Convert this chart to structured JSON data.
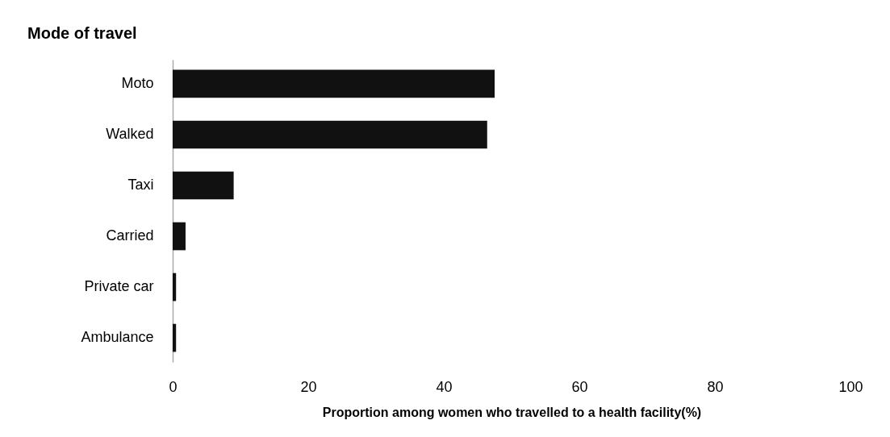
{
  "chart_data": {
    "type": "bar",
    "orientation": "horizontal",
    "title": "Mode of travel",
    "xlabel": "Proportion among  women who travelled to a health facility(%)",
    "categories": [
      "Moto",
      "Walked",
      "Taxi",
      "Carried",
      "Private car",
      "Ambulance"
    ],
    "values": [
      47.5,
      46.4,
      9.0,
      1.9,
      0.5,
      0.5
    ],
    "color": "#111111",
    "xlim": [
      0,
      100
    ],
    "xticks": [
      0,
      20,
      40,
      60,
      80,
      100
    ],
    "grid": false
  }
}
